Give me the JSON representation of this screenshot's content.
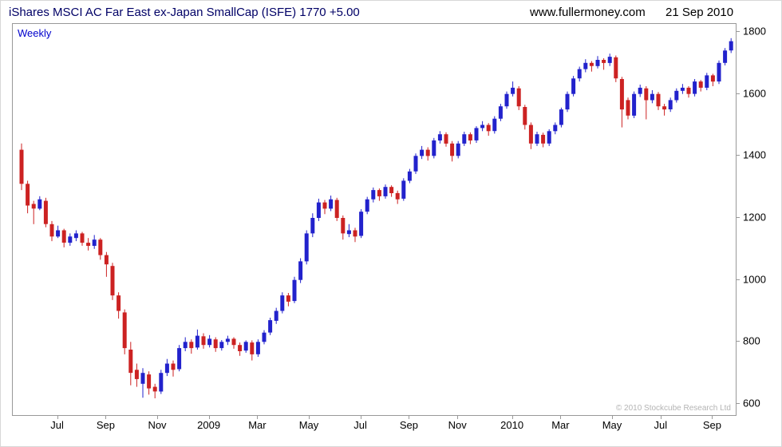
{
  "header": {
    "title": "iShares MSCI AC Far East ex-Japan SmallCap (ISFE) 1770 +5.00",
    "website": "www.fullermoney.com",
    "date": "21 Sep 2010"
  },
  "chart": {
    "frequency_label": "Weekly",
    "copyright": "© 2010 Stockcube Research Ltd"
  },
  "colors": {
    "up": "#2222cc",
    "down": "#cc2222",
    "title": "#000066",
    "border": "#999999"
  },
  "chart_data": {
    "type": "candlestick",
    "title": "iShares MSCI AC Far East ex-Japan SmallCap (ISFE)",
    "last_price": 1770,
    "change": "+5.00",
    "frequency": "Weekly",
    "ylim": [
      560,
      1826
    ],
    "y_ticks": [
      600,
      800,
      1000,
      1200,
      1400,
      1600,
      1800
    ],
    "x_labels": [
      {
        "label": "Jul",
        "week": 6
      },
      {
        "label": "Sep",
        "week": 14
      },
      {
        "label": "Nov",
        "week": 22.5
      },
      {
        "label": "2009",
        "week": 31
      },
      {
        "label": "Mar",
        "week": 39
      },
      {
        "label": "May",
        "week": 47.5
      },
      {
        "label": "Jul",
        "week": 56
      },
      {
        "label": "Sep",
        "week": 64
      },
      {
        "label": "Nov",
        "week": 72
      },
      {
        "label": "2010",
        "week": 81
      },
      {
        "label": "Mar",
        "week": 89
      },
      {
        "label": "May",
        "week": 97.5
      },
      {
        "label": "Jul",
        "week": 105.5
      },
      {
        "label": "Sep",
        "week": 114
      }
    ],
    "ohlc": [
      [
        1420,
        1440,
        1290,
        1310
      ],
      [
        1310,
        1320,
        1215,
        1240
      ],
      [
        1245,
        1255,
        1180,
        1230
      ],
      [
        1230,
        1270,
        1225,
        1260
      ],
      [
        1255,
        1265,
        1170,
        1180
      ],
      [
        1180,
        1190,
        1125,
        1140
      ],
      [
        1140,
        1175,
        1135,
        1160
      ],
      [
        1160,
        1165,
        1105,
        1120
      ],
      [
        1120,
        1150,
        1110,
        1140
      ],
      [
        1135,
        1160,
        1125,
        1150
      ],
      [
        1150,
        1155,
        1110,
        1120
      ],
      [
        1120,
        1135,
        1095,
        1110
      ],
      [
        1110,
        1145,
        1100,
        1130
      ],
      [
        1130,
        1135,
        1065,
        1080
      ],
      [
        1080,
        1090,
        1010,
        1050
      ],
      [
        1045,
        1055,
        935,
        950
      ],
      [
        950,
        960,
        875,
        900
      ],
      [
        895,
        905,
        760,
        780
      ],
      [
        775,
        800,
        660,
        700
      ],
      [
        710,
        730,
        655,
        680
      ],
      [
        665,
        715,
        620,
        700
      ],
      [
        695,
        705,
        630,
        650
      ],
      [
        655,
        665,
        618,
        640
      ],
      [
        640,
        710,
        632,
        700
      ],
      [
        700,
        745,
        690,
        730
      ],
      [
        730,
        740,
        688,
        710
      ],
      [
        712,
        790,
        705,
        780
      ],
      [
        780,
        815,
        770,
        800
      ],
      [
        800,
        808,
        762,
        780
      ],
      [
        782,
        840,
        775,
        820
      ],
      [
        818,
        828,
        778,
        790
      ],
      [
        790,
        822,
        782,
        810
      ],
      [
        808,
        815,
        768,
        780
      ],
      [
        780,
        806,
        772,
        800
      ],
      [
        800,
        820,
        790,
        810
      ],
      [
        810,
        815,
        778,
        790
      ],
      [
        790,
        798,
        755,
        770
      ],
      [
        772,
        805,
        765,
        800
      ],
      [
        798,
        805,
        740,
        760
      ],
      [
        760,
        808,
        752,
        800
      ],
      [
        800,
        838,
        792,
        830
      ],
      [
        830,
        878,
        822,
        870
      ],
      [
        868,
        910,
        858,
        900
      ],
      [
        900,
        960,
        892,
        950
      ],
      [
        950,
        958,
        915,
        930
      ],
      [
        932,
        1010,
        925,
        1000
      ],
      [
        1000,
        1070,
        990,
        1060
      ],
      [
        1060,
        1160,
        1050,
        1150
      ],
      [
        1150,
        1215,
        1138,
        1200
      ],
      [
        1200,
        1262,
        1190,
        1250
      ],
      [
        1250,
        1258,
        1212,
        1230
      ],
      [
        1230,
        1272,
        1222,
        1260
      ],
      [
        1258,
        1265,
        1190,
        1200
      ],
      [
        1200,
        1208,
        1130,
        1150
      ],
      [
        1148,
        1180,
        1138,
        1160
      ],
      [
        1160,
        1168,
        1122,
        1140
      ],
      [
        1142,
        1228,
        1135,
        1220
      ],
      [
        1220,
        1268,
        1212,
        1260
      ],
      [
        1260,
        1298,
        1250,
        1290
      ],
      [
        1290,
        1295,
        1255,
        1270
      ],
      [
        1270,
        1308,
        1262,
        1300
      ],
      [
        1300,
        1305,
        1268,
        1280
      ],
      [
        1280,
        1288,
        1245,
        1260
      ],
      [
        1262,
        1328,
        1255,
        1320
      ],
      [
        1320,
        1358,
        1312,
        1350
      ],
      [
        1350,
        1408,
        1342,
        1400
      ],
      [
        1400,
        1432,
        1390,
        1420
      ],
      [
        1420,
        1428,
        1385,
        1400
      ],
      [
        1400,
        1458,
        1392,
        1450
      ],
      [
        1450,
        1480,
        1440,
        1470
      ],
      [
        1470,
        1476,
        1430,
        1440
      ],
      [
        1440,
        1448,
        1382,
        1400
      ],
      [
        1400,
        1448,
        1392,
        1440
      ],
      [
        1440,
        1478,
        1432,
        1470
      ],
      [
        1470,
        1476,
        1438,
        1450
      ],
      [
        1450,
        1496,
        1442,
        1490
      ],
      [
        1490,
        1512,
        1480,
        1500
      ],
      [
        1500,
        1506,
        1465,
        1480
      ],
      [
        1480,
        1528,
        1472,
        1520
      ],
      [
        1520,
        1568,
        1512,
        1560
      ],
      [
        1560,
        1608,
        1552,
        1600
      ],
      [
        1600,
        1640,
        1592,
        1620
      ],
      [
        1618,
        1625,
        1548,
        1560
      ],
      [
        1558,
        1565,
        1485,
        1500
      ],
      [
        1500,
        1508,
        1422,
        1440
      ],
      [
        1440,
        1478,
        1432,
        1470
      ],
      [
        1468,
        1475,
        1428,
        1440
      ],
      [
        1440,
        1486,
        1432,
        1480
      ],
      [
        1480,
        1508,
        1470,
        1500
      ],
      [
        1500,
        1556,
        1492,
        1550
      ],
      [
        1550,
        1608,
        1542,
        1600
      ],
      [
        1600,
        1658,
        1592,
        1650
      ],
      [
        1650,
        1688,
        1640,
        1680
      ],
      [
        1680,
        1712,
        1670,
        1700
      ],
      [
        1700,
        1706,
        1672,
        1690
      ],
      [
        1690,
        1722,
        1682,
        1710
      ],
      [
        1710,
        1715,
        1678,
        1700
      ],
      [
        1700,
        1730,
        1690,
        1720
      ],
      [
        1718,
        1724,
        1638,
        1650
      ],
      [
        1648,
        1655,
        1492,
        1550
      ],
      [
        1580,
        1588,
        1518,
        1530
      ],
      [
        1530,
        1608,
        1522,
        1600
      ],
      [
        1600,
        1630,
        1590,
        1620
      ],
      [
        1618,
        1625,
        1518,
        1580
      ],
      [
        1580,
        1612,
        1570,
        1600
      ],
      [
        1600,
        1606,
        1548,
        1560
      ],
      [
        1560,
        1568,
        1530,
        1550
      ],
      [
        1550,
        1588,
        1542,
        1580
      ],
      [
        1580,
        1618,
        1572,
        1610
      ],
      [
        1610,
        1632,
        1600,
        1620
      ],
      [
        1620,
        1625,
        1588,
        1600
      ],
      [
        1600,
        1648,
        1592,
        1640
      ],
      [
        1640,
        1645,
        1608,
        1620
      ],
      [
        1620,
        1668,
        1612,
        1660
      ],
      [
        1660,
        1665,
        1625,
        1640
      ],
      [
        1640,
        1708,
        1632,
        1700
      ],
      [
        1700,
        1748,
        1692,
        1740
      ],
      [
        1740,
        1780,
        1732,
        1770
      ]
    ]
  }
}
